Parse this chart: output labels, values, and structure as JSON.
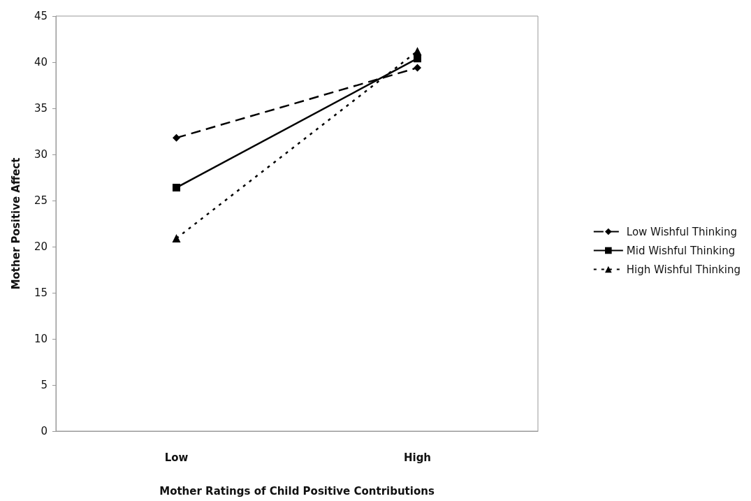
{
  "chart_data": {
    "type": "line",
    "xlabel": "Mother Ratings of Child Positive Contributions",
    "ylabel": "Mother Positive Affect",
    "categories": [
      "Low",
      "High"
    ],
    "series": [
      {
        "name": "Low Wishful Thinking",
        "color": "#000000",
        "values": [
          31.8,
          39.4
        ],
        "marker": "diamond",
        "line_style": "dashed"
      },
      {
        "name": "Mid Wishful Thinking",
        "color": "#000000",
        "values": [
          26.4,
          40.4
        ],
        "marker": "square",
        "line_style": "solid"
      },
      {
        "name": "High Wishful Thinking",
        "color": "#000000",
        "values": [
          20.9,
          41.2
        ],
        "marker": "triangle",
        "line_style": "dotted"
      }
    ],
    "ylim": [
      0,
      45
    ],
    "yticks": [
      0,
      5,
      10,
      15,
      20,
      25,
      30,
      35,
      40,
      45
    ],
    "grid": false,
    "legend": "right"
  }
}
